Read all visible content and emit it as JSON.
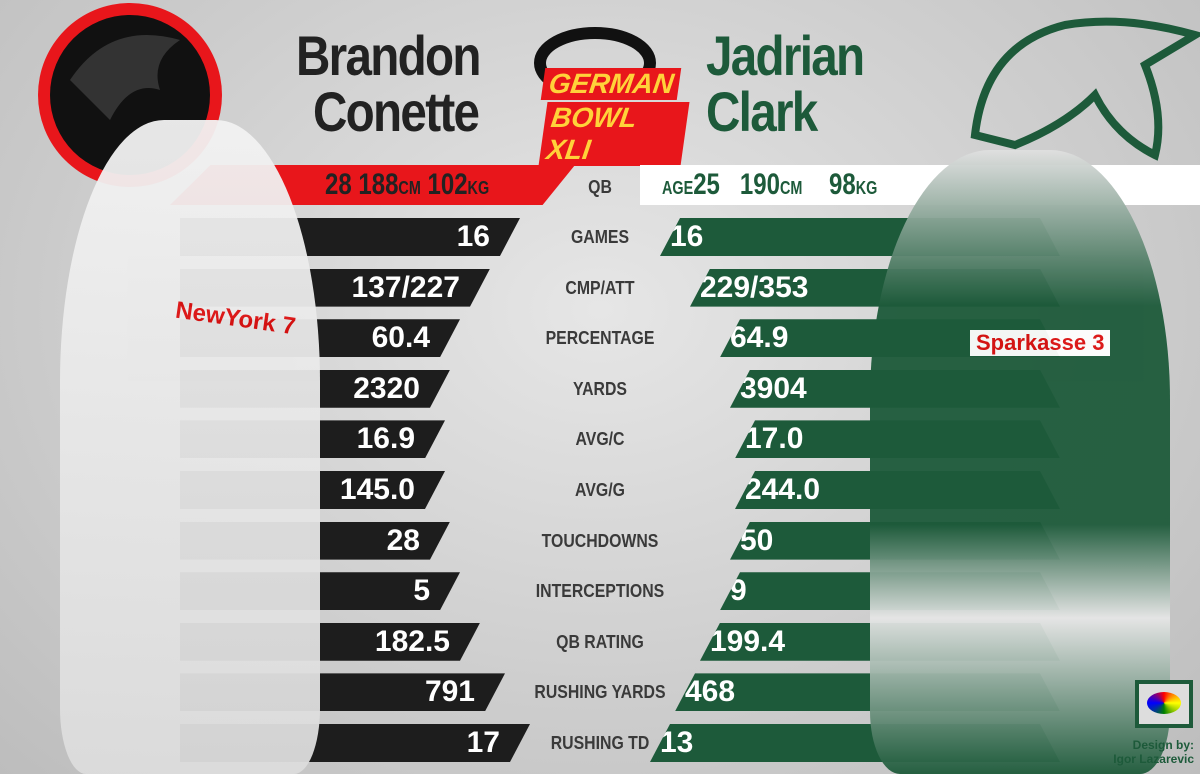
{
  "event": {
    "logo_text_1": "GERMAN",
    "logo_text_2": "BOWL XLI"
  },
  "left_player": {
    "first": "Brandon",
    "last": "Conette",
    "age": "28",
    "height": "188",
    "height_unit": "CM",
    "weight": "102",
    "weight_unit": "KG",
    "color": "#e8161b",
    "jersey": "NewYork 7"
  },
  "right_player": {
    "first": "Jadrian",
    "last": "Clark",
    "age_label": "AGE",
    "age": "25",
    "height": "190",
    "height_unit": "CM",
    "weight": "98",
    "weight_unit": "KG",
    "color": "#1d5a3a",
    "jersey": "Sparkasse 3"
  },
  "position": "QB",
  "stats": [
    {
      "label": "GAMES",
      "left": "16",
      "right": "16"
    },
    {
      "label": "CMP/ATT",
      "left": "137/227",
      "right": "229/353"
    },
    {
      "label": "PERCENTAGE",
      "left": "60.4",
      "right": "64.9"
    },
    {
      "label": "YARDS",
      "left": "2320",
      "right": "3904"
    },
    {
      "label": "AVG/C",
      "left": "16.9",
      "right": "17.0"
    },
    {
      "label": "AVG/G",
      "left": "145.0",
      "right": "244.0"
    },
    {
      "label": "TOUCHDOWNS",
      "left": "28",
      "right": "50"
    },
    {
      "label": "INTERCEPTIONS",
      "left": "5",
      "right": "9"
    },
    {
      "label": "QB RATING",
      "left": "182.5",
      "right": "199.4"
    },
    {
      "label": "RUSHING YARDS",
      "left": "791",
      "right": "468"
    },
    {
      "label": "RUSHING TD",
      "left": "17",
      "right": "13"
    }
  ],
  "credit": {
    "line1": "Design by:",
    "line2": "Igor Lazarevic"
  }
}
